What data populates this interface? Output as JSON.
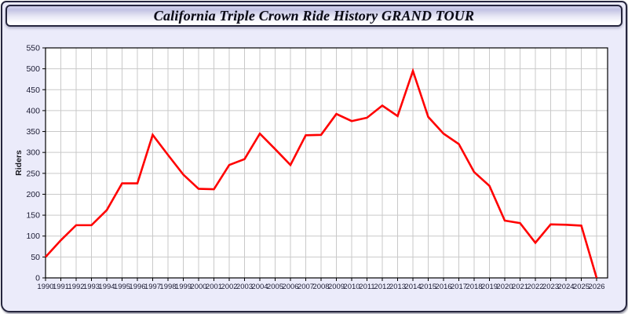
{
  "window": {
    "title": "California Triple Crown Ride History GRAND TOUR"
  },
  "chart_data": {
    "type": "line",
    "title": "California Triple Crown Ride History GRAND TOUR",
    "xlabel": "",
    "ylabel": "Riders",
    "ylim": [
      0,
      550
    ],
    "ytick_step": 50,
    "grid": true,
    "legend_position": "none",
    "x": [
      1990,
      1991,
      1992,
      1993,
      1994,
      1995,
      1996,
      1997,
      1998,
      1999,
      2000,
      2001,
      2002,
      2003,
      2004,
      2005,
      2006,
      2007,
      2008,
      2009,
      2010,
      2011,
      2012,
      2013,
      2014,
      2015,
      2016,
      2017,
      2018,
      2019,
      2020,
      2021,
      2022,
      2023,
      2024,
      2025,
      2026
    ],
    "series": [
      {
        "name": "Riders",
        "color": "#ff0000",
        "values": [
          50,
          90,
          126,
          126,
          162,
          226,
          226,
          342,
          294,
          247,
          213,
          212,
          270,
          284,
          345,
          308,
          270,
          341,
          342,
          392,
          375,
          383,
          412,
          387,
          495,
          385,
          345,
          320,
          253,
          220,
          137,
          131,
          84,
          128,
          127,
          125,
          0
        ]
      }
    ],
    "colors": {
      "plot_background": "#ffffff",
      "gridline": "#c9c9c9",
      "axis": "#000000",
      "tick_label": "#1b1b33",
      "panel_background": "#ebebfa"
    }
  }
}
